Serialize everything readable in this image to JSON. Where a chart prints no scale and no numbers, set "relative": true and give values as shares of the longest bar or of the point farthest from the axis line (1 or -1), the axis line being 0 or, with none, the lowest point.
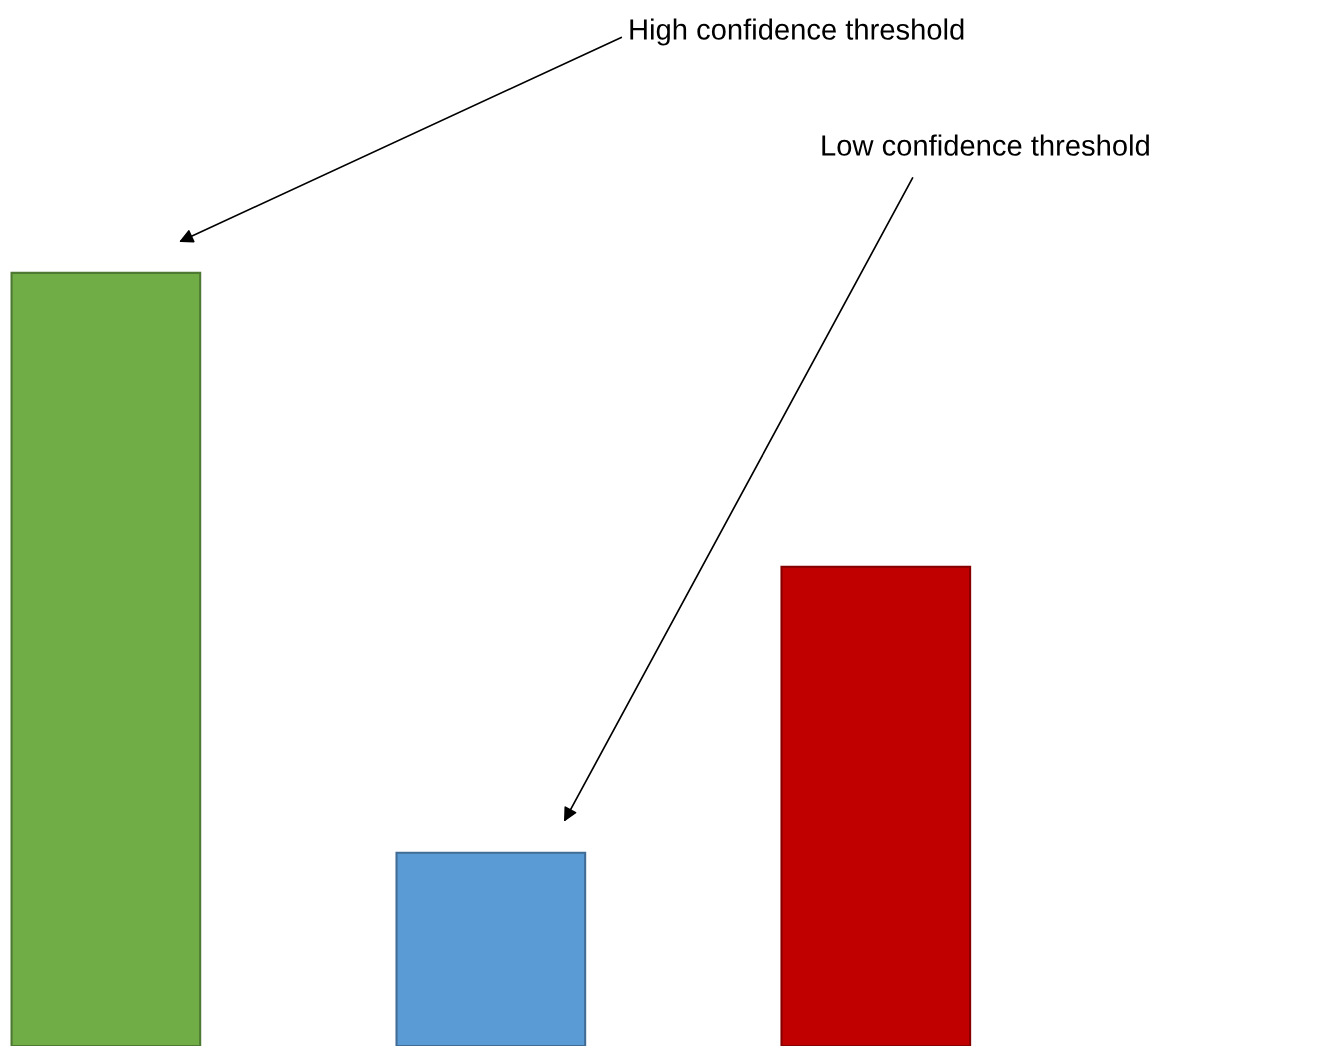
{
  "chart_data": {
    "type": "bar",
    "relative": true,
    "categories": [
      null,
      null,
      null
    ],
    "values": [
      1,
      0.25,
      0.62
    ],
    "colors": [
      "#70ad47",
      "#5b9bd5",
      "#c00000"
    ],
    "annotations": [
      "High confidence threshold",
      "Low confidence threshold"
    ]
  }
}
